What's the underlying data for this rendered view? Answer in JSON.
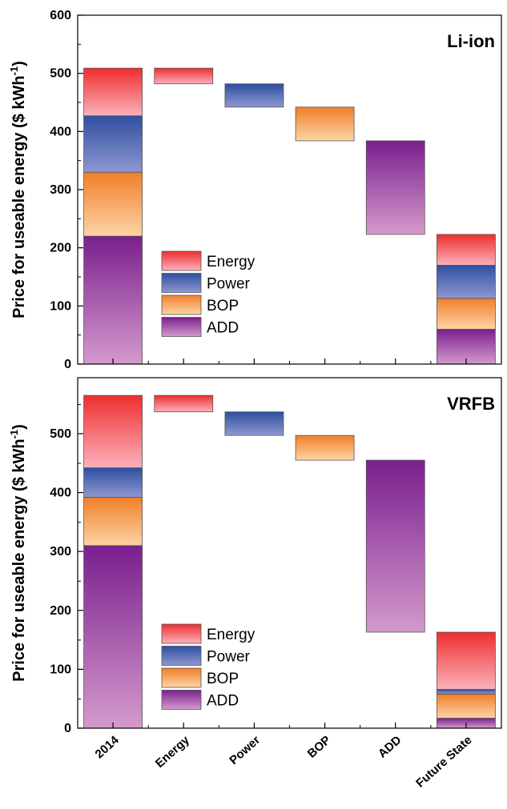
{
  "chart_data": [
    {
      "type": "bar",
      "subtype": "waterfall",
      "title": "Li-ion",
      "ylabel": "Price for useable energy ($ kWh-1)",
      "ylabel_parts": [
        "Price for useable energy ($ kWh",
        "-1",
        ")"
      ],
      "ylim": [
        0,
        600
      ],
      "yticks": [
        0,
        100,
        200,
        300,
        400,
        500,
        600
      ],
      "categories": [
        "2014",
        "Energy",
        "Power",
        "BOP",
        "ADD",
        "Future State"
      ],
      "stacked": {
        "2014": {
          "ADD": 220,
          "BOP": 110,
          "Power": 97,
          "Energy": 82
        },
        "Future State": {
          "ADD": 60,
          "BOP": 53,
          "Power": 57,
          "Energy": 53
        }
      },
      "reductions": [
        {
          "category": "Energy",
          "component": "Energy",
          "from": 509,
          "to": 482
        },
        {
          "category": "Power",
          "component": "Power",
          "from": 482,
          "to": 442
        },
        {
          "category": "BOP",
          "component": "BOP",
          "from": 442,
          "to": 384
        },
        {
          "category": "ADD",
          "component": "ADD",
          "from": 384,
          "to": 223
        }
      ],
      "legend": [
        "Energy",
        "Power",
        "BOP",
        "ADD"
      ],
      "legend_position": "lower-left",
      "grid": false
    },
    {
      "type": "bar",
      "subtype": "waterfall",
      "title": "VRFB",
      "ylabel": "Price for useable energy ($ kWh-1)",
      "ylabel_parts": [
        "Price for useable energy ($ kWh",
        "-1",
        ")"
      ],
      "ylim": [
        0,
        595
      ],
      "yticks": [
        0,
        100,
        200,
        300,
        400,
        500
      ],
      "categories": [
        "2014",
        "Energy",
        "Power",
        "BOP",
        "ADD",
        "Future State"
      ],
      "stacked": {
        "2014": {
          "ADD": 310,
          "BOP": 82,
          "Power": 50,
          "Energy": 123
        },
        "Future State": {
          "ADD": 17,
          "BOP": 41,
          "Power": 8,
          "Energy": 97
        }
      },
      "reductions": [
        {
          "category": "Energy",
          "component": "Energy",
          "from": 565,
          "to": 537
        },
        {
          "category": "Power",
          "component": "Power",
          "from": 537,
          "to": 497
        },
        {
          "category": "BOP",
          "component": "BOP",
          "from": 497,
          "to": 455
        },
        {
          "category": "ADD",
          "component": "ADD",
          "from": 455,
          "to": 163
        }
      ],
      "legend": [
        "Energy",
        "Power",
        "BOP",
        "ADD"
      ],
      "legend_position": "lower-left",
      "grid": false
    }
  ],
  "colors": {
    "Energy": [
      "#ee2e2e",
      "#fbb1bb"
    ],
    "Power": [
      "#2e4fa0",
      "#8f97d1"
    ],
    "BOP": [
      "#f07f2a",
      "#fdd4a4"
    ],
    "ADD": [
      "#7a1f8e",
      "#d49acc"
    ]
  }
}
